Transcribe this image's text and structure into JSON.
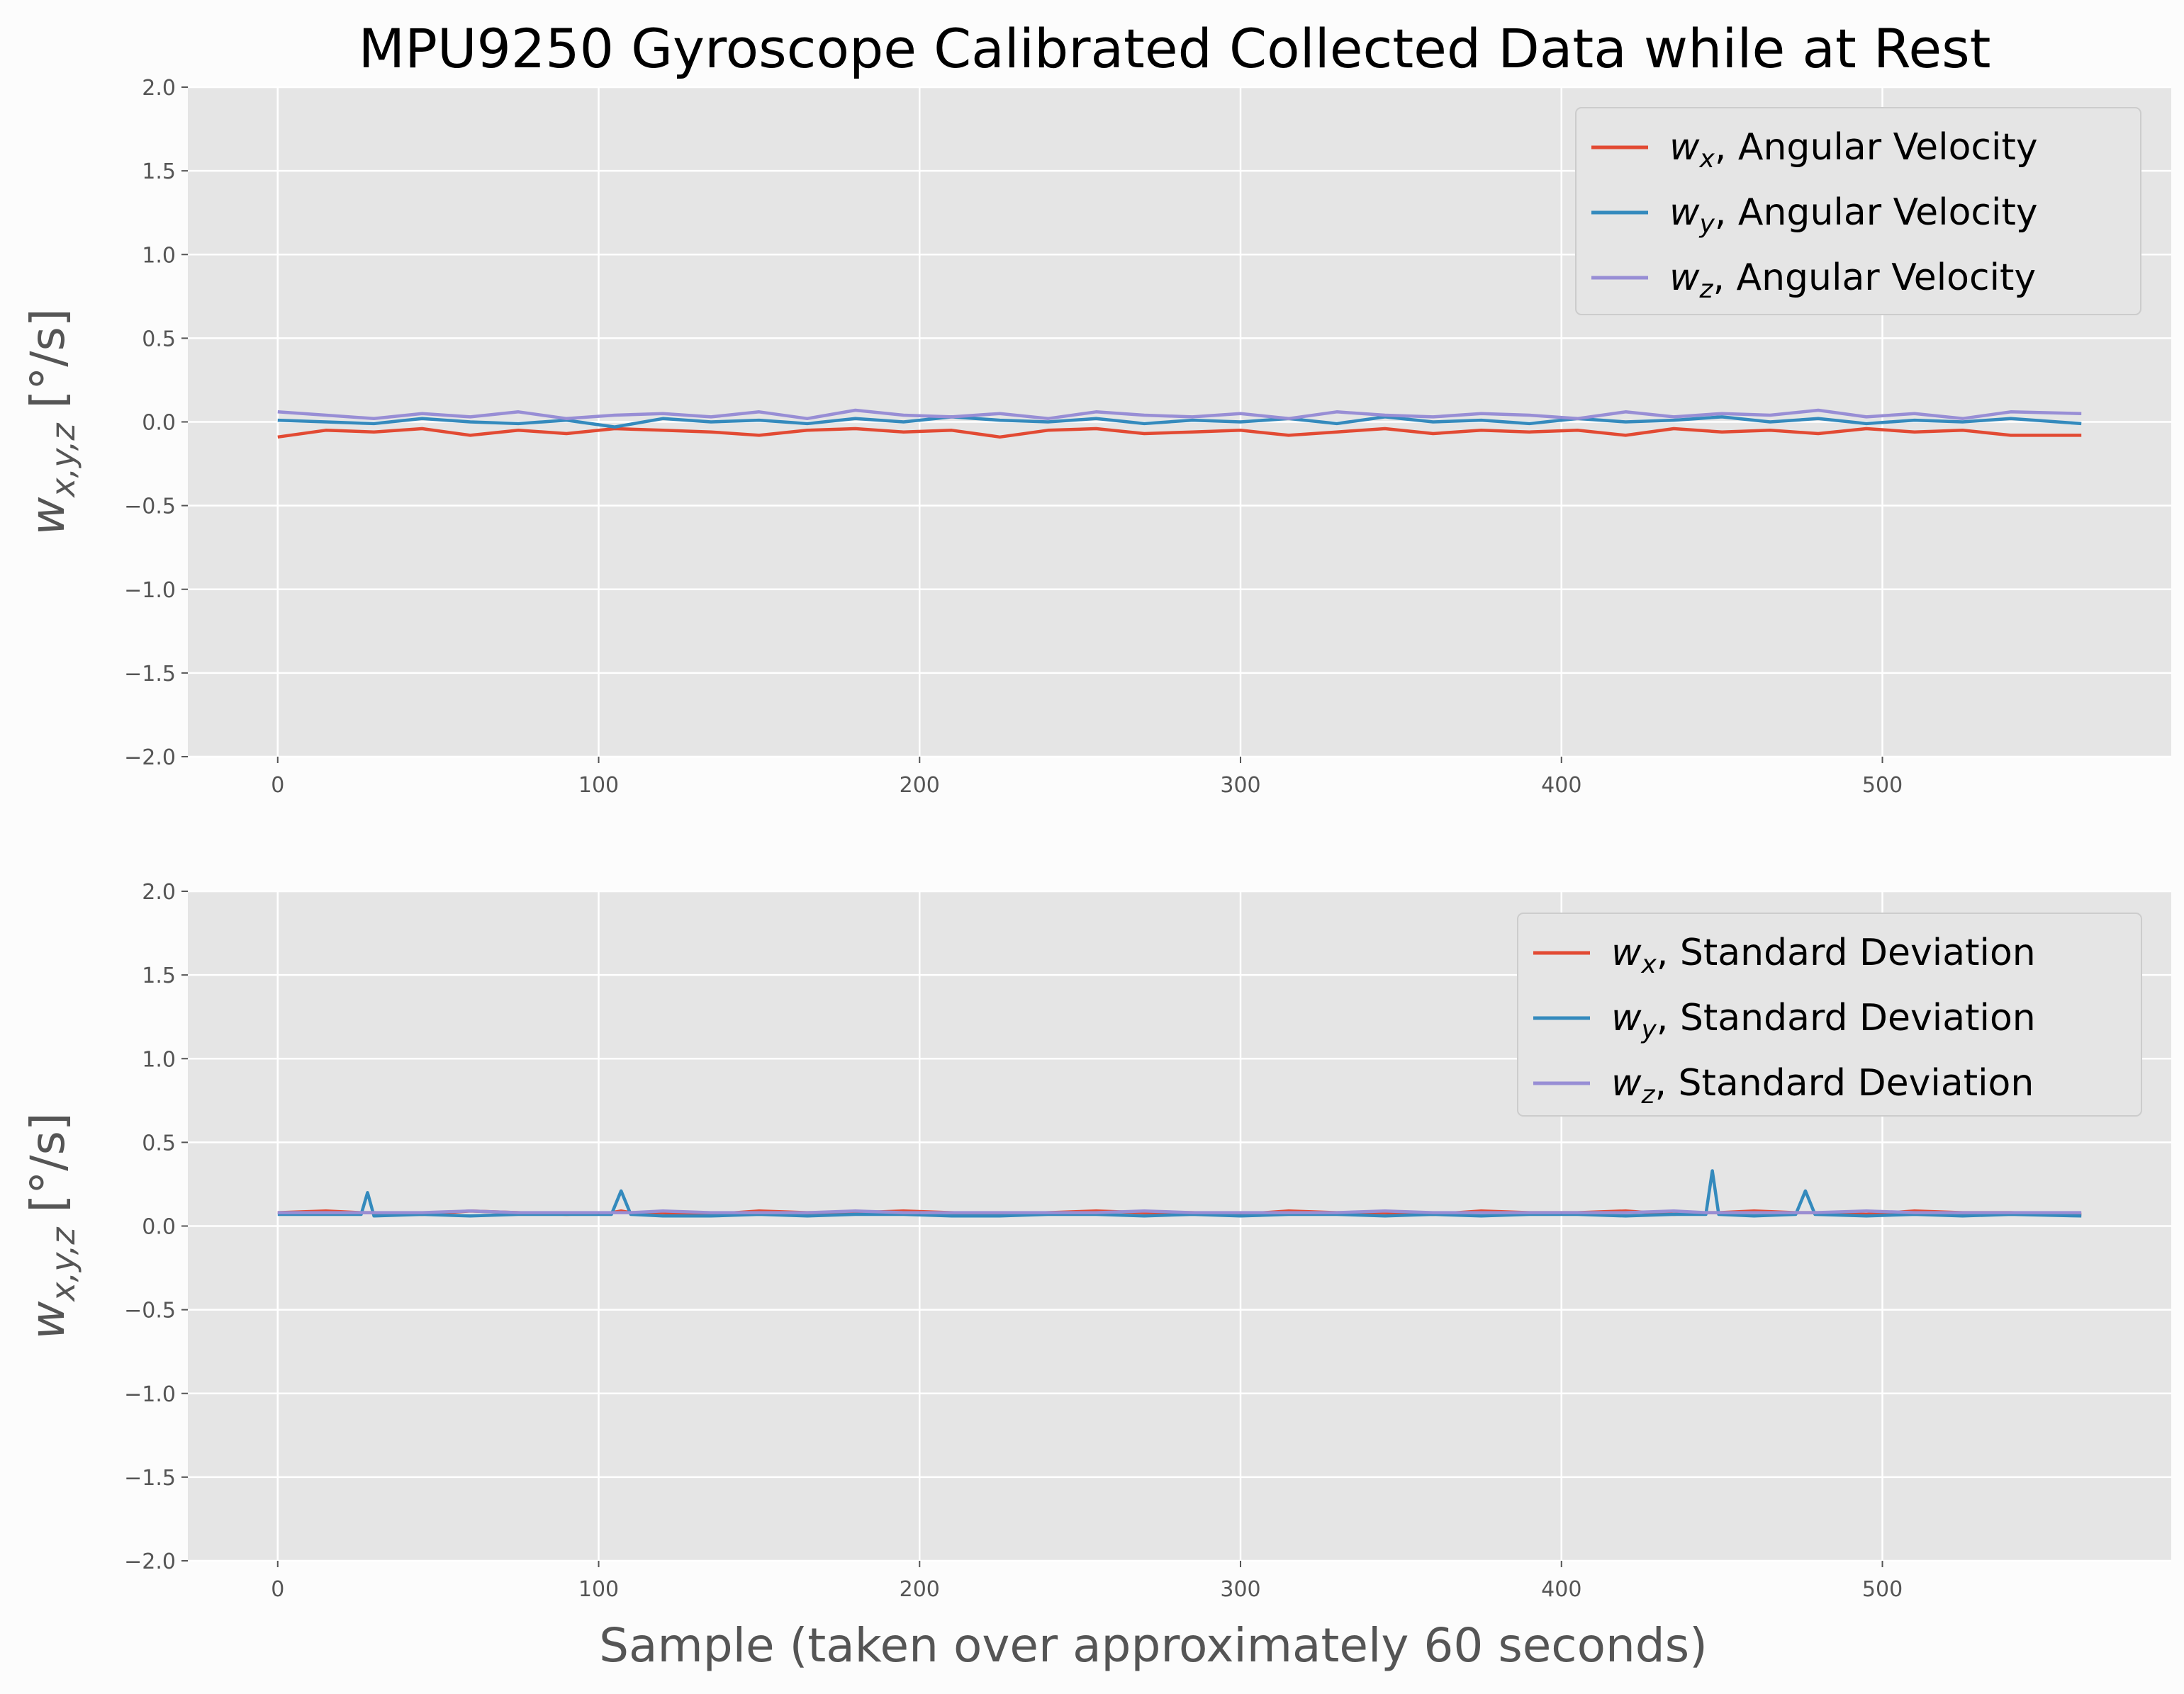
{
  "chart_data": [
    {
      "type": "line",
      "title": "MPU9250 Gyroscope Calibrated Collected Data while at Rest",
      "ylabel": "w_{x,y,z} [°/s]",
      "xlabel": "",
      "xlim": [
        -28,
        590
      ],
      "ylim": [
        -2.0,
        2.0
      ],
      "xticks": [
        0,
        100,
        200,
        300,
        400,
        500
      ],
      "yticks": [
        -2.0,
        -1.5,
        -1.0,
        -0.5,
        0.0,
        0.5,
        1.0,
        1.5,
        2.0
      ],
      "grid": true,
      "legend": "top-right",
      "x_points": [
        0,
        15,
        30,
        45,
        60,
        75,
        90,
        105,
        120,
        135,
        150,
        165,
        180,
        195,
        210,
        225,
        240,
        255,
        270,
        285,
        300,
        315,
        330,
        345,
        360,
        375,
        390,
        405,
        420,
        435,
        450,
        465,
        480,
        495,
        510,
        525,
        540,
        562
      ],
      "series": [
        {
          "name": "w_x, Angular Velocity",
          "color": "#E24A33",
          "values": [
            -0.09,
            -0.05,
            -0.06,
            -0.04,
            -0.08,
            -0.05,
            -0.07,
            -0.04,
            -0.05,
            -0.06,
            -0.08,
            -0.05,
            -0.04,
            -0.06,
            -0.05,
            -0.09,
            -0.05,
            -0.04,
            -0.07,
            -0.06,
            -0.05,
            -0.08,
            -0.06,
            -0.04,
            -0.07,
            -0.05,
            -0.06,
            -0.05,
            -0.08,
            -0.04,
            -0.06,
            -0.05,
            -0.07,
            -0.04,
            -0.06,
            -0.05,
            -0.08,
            -0.08
          ]
        },
        {
          "name": "w_y, Angular Velocity",
          "color": "#348ABD",
          "values": [
            0.01,
            0.0,
            -0.01,
            0.02,
            0.0,
            -0.01,
            0.01,
            -0.03,
            0.02,
            0.0,
            0.01,
            -0.01,
            0.02,
            0.0,
            0.03,
            0.01,
            0.0,
            0.02,
            -0.01,
            0.01,
            0.0,
            0.02,
            -0.01,
            0.03,
            0.0,
            0.01,
            -0.01,
            0.02,
            0.0,
            0.01,
            0.03,
            0.0,
            0.02,
            -0.01,
            0.01,
            0.0,
            0.02,
            -0.01
          ]
        },
        {
          "name": "w_z, Angular Velocity",
          "color": "#988ED5",
          "values": [
            0.06,
            0.04,
            0.02,
            0.05,
            0.03,
            0.06,
            0.02,
            0.04,
            0.05,
            0.03,
            0.06,
            0.02,
            0.07,
            0.04,
            0.03,
            0.05,
            0.02,
            0.06,
            0.04,
            0.03,
            0.05,
            0.02,
            0.06,
            0.04,
            0.03,
            0.05,
            0.04,
            0.02,
            0.06,
            0.03,
            0.05,
            0.04,
            0.07,
            0.03,
            0.05,
            0.02,
            0.06,
            0.05
          ]
        }
      ]
    },
    {
      "type": "line",
      "title": "",
      "ylabel": "w_{x,y,z} [°/s]",
      "xlabel": "Sample (taken over approximately 60 seconds)",
      "xlim": [
        -28,
        590
      ],
      "ylim": [
        -2.0,
        2.0
      ],
      "xticks": [
        0,
        100,
        200,
        300,
        400,
        500
      ],
      "yticks": [
        -2.0,
        -1.5,
        -1.0,
        -0.5,
        0.0,
        0.5,
        1.0,
        1.5,
        2.0
      ],
      "grid": true,
      "legend": "top-right",
      "x_points": [
        0,
        15,
        26,
        28,
        30,
        45,
        60,
        75,
        90,
        104,
        107,
        110,
        120,
        135,
        150,
        165,
        180,
        195,
        210,
        225,
        240,
        255,
        270,
        285,
        300,
        315,
        330,
        345,
        360,
        375,
        390,
        405,
        420,
        435,
        445,
        447,
        449,
        460,
        473,
        476,
        479,
        495,
        510,
        525,
        540,
        562
      ],
      "series": [
        {
          "name": "w_x, Standard Deviation",
          "color": "#E24A33",
          "values": [
            0.08,
            0.09,
            0.08,
            0.08,
            0.08,
            0.07,
            0.09,
            0.08,
            0.07,
            0.08,
            0.09,
            0.08,
            0.08,
            0.07,
            0.09,
            0.08,
            0.08,
            0.09,
            0.08,
            0.07,
            0.08,
            0.09,
            0.08,
            0.08,
            0.07,
            0.09,
            0.08,
            0.08,
            0.07,
            0.09,
            0.08,
            0.08,
            0.09,
            0.07,
            0.08,
            0.08,
            0.08,
            0.09,
            0.08,
            0.08,
            0.08,
            0.07,
            0.09,
            0.08,
            0.08,
            0.07
          ]
        },
        {
          "name": "w_y, Standard Deviation",
          "color": "#348ABD",
          "values": [
            0.07,
            0.07,
            0.07,
            0.2,
            0.06,
            0.07,
            0.06,
            0.07,
            0.07,
            0.07,
            0.21,
            0.07,
            0.06,
            0.06,
            0.07,
            0.06,
            0.07,
            0.07,
            0.06,
            0.06,
            0.07,
            0.07,
            0.06,
            0.07,
            0.06,
            0.07,
            0.07,
            0.06,
            0.07,
            0.06,
            0.07,
            0.07,
            0.06,
            0.07,
            0.07,
            0.33,
            0.07,
            0.06,
            0.07,
            0.21,
            0.07,
            0.06,
            0.07,
            0.06,
            0.07,
            0.06
          ]
        },
        {
          "name": "w_z, Standard Deviation",
          "color": "#988ED5",
          "values": [
            0.08,
            0.08,
            0.08,
            0.08,
            0.08,
            0.08,
            0.09,
            0.08,
            0.08,
            0.08,
            0.08,
            0.08,
            0.09,
            0.08,
            0.08,
            0.08,
            0.09,
            0.08,
            0.08,
            0.08,
            0.08,
            0.08,
            0.09,
            0.08,
            0.08,
            0.08,
            0.08,
            0.09,
            0.08,
            0.08,
            0.08,
            0.08,
            0.08,
            0.09,
            0.08,
            0.08,
            0.08,
            0.08,
            0.08,
            0.08,
            0.08,
            0.09,
            0.08,
            0.08,
            0.08,
            0.08
          ]
        }
      ]
    }
  ]
}
